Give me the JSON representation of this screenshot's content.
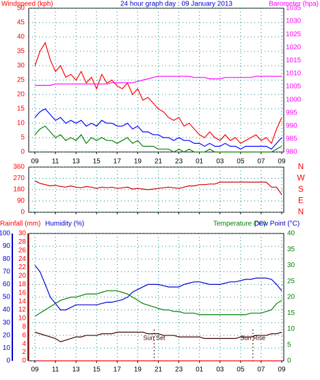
{
  "chart_data": [
    {
      "type": "line",
      "title": "24 hour graph day : 09 January 2013",
      "ylabel": "Windspeed (kph)",
      "y2label": "Barometer (hpa)",
      "xlim": [
        -0.6,
        24.2
      ],
      "xticks": [
        {
          "value": 0,
          "label": "09"
        },
        {
          "value": 2,
          "label": "11"
        },
        {
          "value": 4,
          "label": "13"
        },
        {
          "value": 6,
          "label": "15"
        },
        {
          "value": 8,
          "label": "17"
        },
        {
          "value": 10,
          "label": "19"
        },
        {
          "value": 12,
          "label": "21"
        },
        {
          "value": 14,
          "label": "23"
        },
        {
          "value": 16,
          "label": "01"
        },
        {
          "value": 18,
          "label": "03"
        },
        {
          "value": 20,
          "label": "05"
        },
        {
          "value": 22,
          "label": "07"
        },
        {
          "value": 24,
          "label": "09"
        }
      ],
      "show_xtick_labels": true,
      "ylim": [
        0,
        50
      ],
      "yticks": [
        0,
        5,
        10,
        15,
        20,
        25,
        30,
        35,
        40,
        45,
        50
      ],
      "ytick_color": "#ff0000",
      "y2lim": [
        980,
        1035
      ],
      "y2ticks": [
        980,
        985,
        990,
        995,
        1000,
        1005,
        1010,
        1015,
        1020,
        1025,
        1030,
        1035
      ],
      "y2tick_color": "#ff00ff",
      "grid": true,
      "x": [
        0,
        0.5,
        1,
        1.5,
        2,
        2.5,
        3,
        3.5,
        4,
        4.5,
        5,
        5.5,
        6,
        6.5,
        7,
        7.5,
        8,
        8.5,
        9,
        9.5,
        10,
        10.5,
        11,
        11.5,
        12,
        12.5,
        13,
        13.5,
        14,
        14.5,
        15,
        15.5,
        16,
        16.5,
        17,
        17.5,
        18,
        18.5,
        19,
        19.5,
        20,
        20.5,
        21,
        21.5,
        22,
        22.5,
        23,
        23.5,
        24
      ],
      "series": [
        {
          "color": "#ff0000",
          "values": [
            30,
            35,
            38,
            32,
            28,
            30,
            26,
            27,
            25,
            28,
            24,
            26,
            22,
            27,
            24,
            25,
            23,
            22,
            24,
            20,
            22,
            18,
            19,
            17,
            15,
            14,
            12,
            11,
            12,
            9,
            10,
            8,
            6,
            5,
            7,
            5,
            4,
            6,
            4,
            5,
            3,
            4,
            5,
            6,
            4,
            5,
            3,
            8,
            12
          ]
        },
        {
          "color": "#008000",
          "values": [
            6,
            8,
            9,
            7,
            5,
            6,
            4,
            5,
            4,
            6,
            3,
            5,
            4,
            5,
            4,
            4,
            3,
            4,
            5,
            3,
            4,
            2,
            2,
            2,
            1,
            1,
            1,
            0,
            1,
            0,
            1,
            0,
            0,
            0,
            1,
            0,
            0,
            0,
            0,
            0,
            0,
            0,
            0,
            0,
            0,
            0,
            0,
            1,
            2
          ]
        },
        {
          "color": "#0000ff",
          "values": [
            12,
            14,
            15,
            13,
            11,
            12,
            10,
            11,
            10,
            11,
            9,
            10,
            9,
            11,
            10,
            10,
            9,
            9,
            10,
            8,
            9,
            7,
            7,
            6,
            6,
            5,
            5,
            4,
            5,
            4,
            4,
            3,
            3,
            2,
            3,
            2,
            2,
            3,
            2,
            2,
            1,
            2,
            2,
            2,
            2,
            2,
            1,
            3,
            5
          ]
        },
        {
          "color": "#ff00ff",
          "axis": "y2",
          "values": [
            1005.5,
            1005.5,
            1005.5,
            1005.5,
            1006,
            1006,
            1006,
            1006,
            1006,
            1006,
            1006,
            1006,
            1006,
            1006,
            1006,
            1006.5,
            1006.5,
            1006.5,
            1006.5,
            1006.5,
            1007,
            1007.5,
            1008,
            1008.5,
            1009,
            1009,
            1009,
            1009,
            1009,
            1009,
            1009,
            1008.5,
            1008.5,
            1008.5,
            1008,
            1008,
            1008,
            1008.5,
            1008.5,
            1008.5,
            1008.5,
            1008.5,
            1008.5,
            1009,
            1009,
            1009,
            1009,
            1009,
            1009
          ]
        }
      ]
    },
    {
      "type": "line",
      "xlim": [
        -0.6,
        24.2
      ],
      "xticks": [
        0,
        2,
        4,
        6,
        8,
        10,
        12,
        14,
        16,
        18,
        20,
        22,
        24
      ],
      "show_xtick_labels": false,
      "ylim": [
        0,
        360
      ],
      "yticks": [
        0,
        90,
        180,
        270,
        360
      ],
      "ytick_color": "#ff0000",
      "y2lim": [
        0,
        360
      ],
      "y2ticks": [
        {
          "value": 360,
          "label": "N"
        },
        {
          "value": 270,
          "label": "W"
        },
        {
          "value": 180,
          "label": "S"
        },
        {
          "value": 90,
          "label": "E"
        },
        {
          "value": 0,
          "label": "N"
        }
      ],
      "y2tick_color": "#ff0000",
      "grid": true,
      "x": [
        0,
        0.5,
        1,
        1.5,
        2,
        2.5,
        3,
        3.5,
        4,
        4.5,
        5,
        5.5,
        6,
        6.5,
        7,
        7.5,
        8,
        8.5,
        9,
        9.5,
        10,
        10.5,
        11,
        11.5,
        12,
        12.5,
        13,
        13.5,
        14,
        14.5,
        15,
        15.5,
        16,
        16.5,
        17,
        17.5,
        18,
        18.5,
        19,
        19.5,
        20,
        20.5,
        21,
        21.5,
        22,
        22.5,
        23,
        23.5,
        24
      ],
      "series": [
        {
          "color": "#cc0000",
          "values": [
            250,
            230,
            220,
            210,
            215,
            205,
            200,
            210,
            200,
            195,
            205,
            200,
            190,
            200,
            195,
            200,
            190,
            195,
            200,
            185,
            190,
            185,
            180,
            185,
            190,
            195,
            200,
            195,
            190,
            200,
            210,
            210,
            220,
            220,
            225,
            225,
            240,
            240,
            240,
            240,
            240,
            240,
            240,
            240,
            240,
            240,
            200,
            200,
            140
          ]
        }
      ]
    },
    {
      "type": "line",
      "ylabel": "Humidity (%)",
      "y3label": "Rainfall (mm)",
      "y2labels": [
        "Temperature (°C)",
        "Dew Point (°C)"
      ],
      "xlim": [
        -0.6,
        24.2
      ],
      "xticks": [
        {
          "value": 0,
          "label": "09"
        },
        {
          "value": 2,
          "label": "11"
        },
        {
          "value": 4,
          "label": "13"
        },
        {
          "value": 6,
          "label": "15"
        },
        {
          "value": 8,
          "label": "17"
        },
        {
          "value": 10,
          "label": "19"
        },
        {
          "value": 12,
          "label": "21"
        },
        {
          "value": 14,
          "label": "23"
        },
        {
          "value": 16,
          "label": "01"
        },
        {
          "value": 18,
          "label": "03"
        },
        {
          "value": 20,
          "label": "05"
        },
        {
          "value": 22,
          "label": "07"
        },
        {
          "value": 24,
          "label": "09"
        }
      ],
      "show_xtick_labels": true,
      "ylim": [
        0,
        100
      ],
      "yticks": [
        0,
        10,
        20,
        30,
        40,
        50,
        60,
        70,
        80,
        90,
        100
      ],
      "ytick_color": "#0000cc",
      "y3lim": [
        0,
        30
      ],
      "y3ticks": [
        0,
        2,
        4,
        6,
        8,
        10,
        12,
        14,
        16,
        18,
        20,
        22,
        24,
        26,
        28,
        30
      ],
      "y3tick_color": "#ff0000",
      "y2lim": [
        0,
        40
      ],
      "y2ticks": [
        0,
        5,
        10,
        15,
        20,
        25,
        30,
        35,
        40
      ],
      "y2tick_color": "#008000",
      "grid": true,
      "annotations": [
        {
          "text": "Sun Set",
          "x": 11.6
        },
        {
          "text": "Sun Rise",
          "x": 21.2
        }
      ],
      "x": [
        0,
        0.5,
        1,
        1.5,
        2,
        2.5,
        3,
        3.5,
        4,
        4.5,
        5,
        5.5,
        6,
        6.5,
        7,
        7.5,
        8,
        8.5,
        9,
        9.5,
        10,
        10.5,
        11,
        11.5,
        12,
        12.5,
        13,
        13.5,
        14,
        14.5,
        15,
        15.5,
        16,
        16.5,
        17,
        17.5,
        18,
        18.5,
        19,
        19.5,
        20,
        20.5,
        21,
        21.5,
        22,
        22.5,
        23,
        23.5,
        24
      ],
      "series": [
        {
          "color": "#ff0000",
          "axis": "y3",
          "values": [
            0,
            0,
            0,
            0,
            0,
            0,
            0,
            0,
            0,
            0,
            0,
            0,
            0,
            0,
            0,
            0,
            0,
            0,
            0,
            0,
            0,
            0,
            0,
            0,
            0,
            0,
            0,
            0,
            0,
            0,
            0,
            0,
            0,
            0,
            0,
            0,
            0,
            0,
            0,
            0,
            0,
            0,
            0,
            0,
            0,
            0,
            0,
            0,
            0
          ]
        },
        {
          "color": "#0000cc",
          "values": [
            75,
            70,
            60,
            50,
            45,
            40,
            40,
            42,
            44,
            44,
            44,
            44,
            44,
            45,
            46,
            46,
            47,
            48,
            50,
            54,
            56,
            58,
            60,
            60,
            60,
            59,
            58,
            58,
            58,
            60,
            61,
            62,
            62,
            61,
            60,
            60,
            60,
            61,
            62,
            62,
            63,
            64,
            64,
            65,
            65,
            65,
            64,
            60,
            55
          ]
        },
        {
          "color": "#008000",
          "axis": "y2",
          "values": [
            14,
            15,
            16,
            17,
            18,
            19,
            19.5,
            20,
            20,
            20.5,
            21,
            21,
            21,
            21.5,
            22,
            22,
            22,
            21.5,
            21,
            20,
            19,
            18,
            17.5,
            17,
            16.5,
            16,
            16,
            15.5,
            15.5,
            15,
            15,
            15,
            14.5,
            14.5,
            14.5,
            14.5,
            14.5,
            14.5,
            14.5,
            14.5,
            14.5,
            14.5,
            15,
            15,
            15,
            15.5,
            16,
            18,
            19
          ]
        },
        {
          "color": "#400000",
          "axis": "y2",
          "values": [
            9,
            8.5,
            8,
            7.5,
            7,
            6,
            6.5,
            7,
            7.5,
            7.5,
            8,
            8,
            8,
            8.5,
            8.5,
            8.5,
            9,
            9,
            9,
            9,
            9,
            9,
            8.5,
            8.5,
            8.5,
            8,
            8,
            8,
            7.5,
            7.5,
            7.5,
            7.5,
            7.5,
            7,
            7,
            7,
            7,
            7,
            7,
            7,
            7.5,
            7.5,
            7.5,
            8,
            8,
            8,
            8.5,
            8.5,
            9
          ]
        }
      ]
    }
  ]
}
